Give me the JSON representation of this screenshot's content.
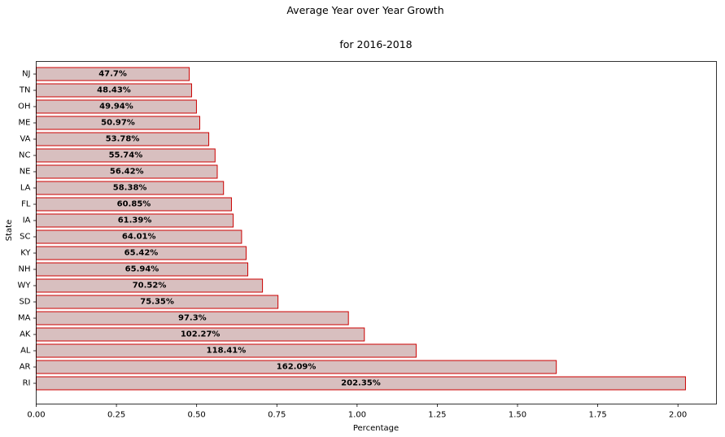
{
  "chart_data": {
    "type": "bar",
    "orientation": "horizontal",
    "title": "Average Year over Year Growth",
    "subtitle": "for 2016-2018",
    "xlabel": "Percentage",
    "ylabel": "State",
    "xlim": [
      0,
      2.12
    ],
    "xticks": [
      0,
      0.25,
      0.5,
      0.75,
      1.0,
      1.25,
      1.5,
      1.75,
      2.0
    ],
    "xtick_labels": [
      "0.00",
      "0.25",
      "0.50",
      "0.75",
      "1.00",
      "1.25",
      "1.50",
      "1.75",
      "2.00"
    ],
    "grid": false,
    "bar_fill": "#d8bfbf",
    "bar_edge": "#cc0000",
    "categories": [
      "RI",
      "AR",
      "AL",
      "AK",
      "MA",
      "SD",
      "WY",
      "NH",
      "KY",
      "SC",
      "IA",
      "FL",
      "LA",
      "NE",
      "NC",
      "VA",
      "ME",
      "OH",
      "TN",
      "NJ"
    ],
    "values": [
      2.0235,
      1.6209,
      1.1841,
      1.0227,
      0.973,
      0.7535,
      0.7052,
      0.6594,
      0.6542,
      0.6401,
      0.6139,
      0.6085,
      0.5838,
      0.5642,
      0.5574,
      0.5378,
      0.5097,
      0.4994,
      0.4843,
      0.477
    ],
    "data_labels": [
      "202.35%",
      "162.09%",
      "118.41%",
      "102.27%",
      "97.3%",
      "75.35%",
      "70.52%",
      "65.94%",
      "65.42%",
      "64.01%",
      "61.39%",
      "60.85%",
      "58.38%",
      "56.42%",
      "55.74%",
      "53.78%",
      "50.97%",
      "49.94%",
      "48.43%",
      "47.7%"
    ]
  }
}
